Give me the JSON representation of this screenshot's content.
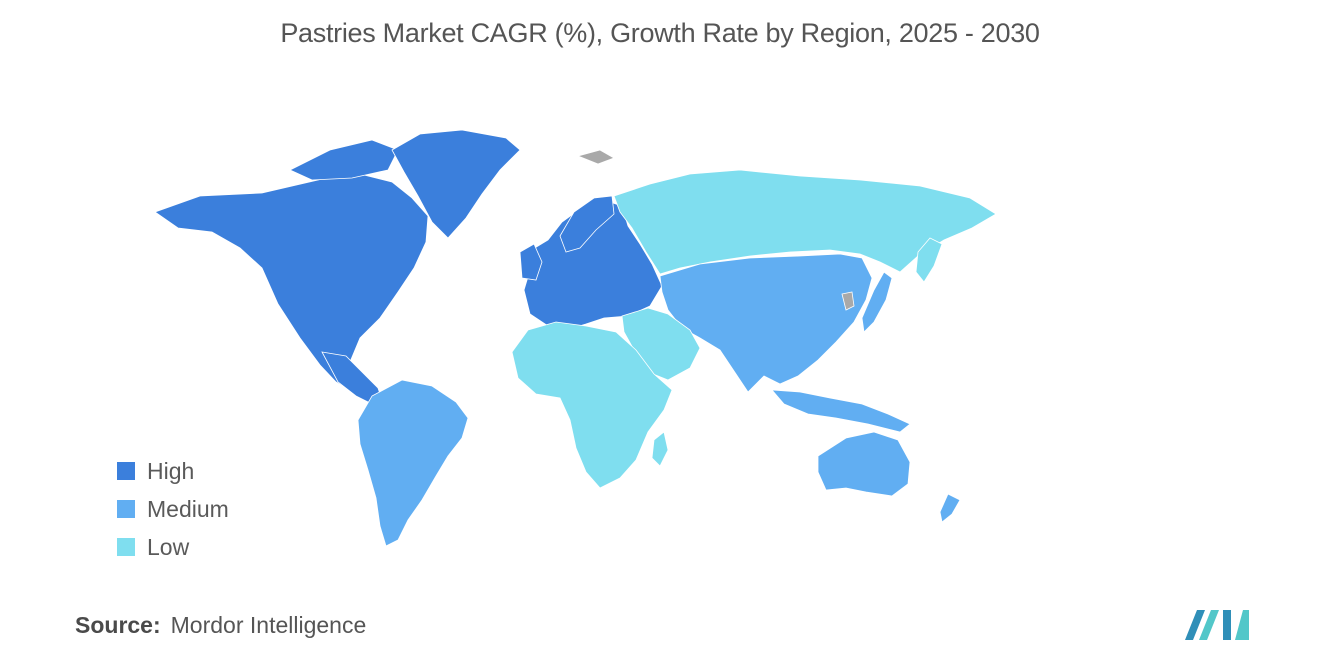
{
  "title": "Pastries Market CAGR (%), Growth Rate by Region, 2025 - 2030",
  "colors": {
    "high": "#3b7fdc",
    "medium": "#61aef2",
    "low": "#7fdeef",
    "no_data": "#a9a9a9",
    "border": "#ffffff",
    "logo_dark": "#2f8fb8",
    "logo_light": "#52c7c9"
  },
  "legend": {
    "items": [
      {
        "key": "high",
        "label": "High"
      },
      {
        "key": "medium",
        "label": "Medium"
      },
      {
        "key": "low",
        "label": "Low"
      }
    ]
  },
  "regions": {
    "north_america": "high",
    "greenland": "high",
    "europe": "high",
    "south_america": "medium",
    "asia_pacific": "medium",
    "australia_nz": "medium",
    "russia": "low",
    "middle_east_africa": "low"
  },
  "source": {
    "key": "Source:",
    "value": "Mordor Intelligence"
  },
  "logo": {
    "icon": "mordor-intelligence-logo-icon"
  }
}
